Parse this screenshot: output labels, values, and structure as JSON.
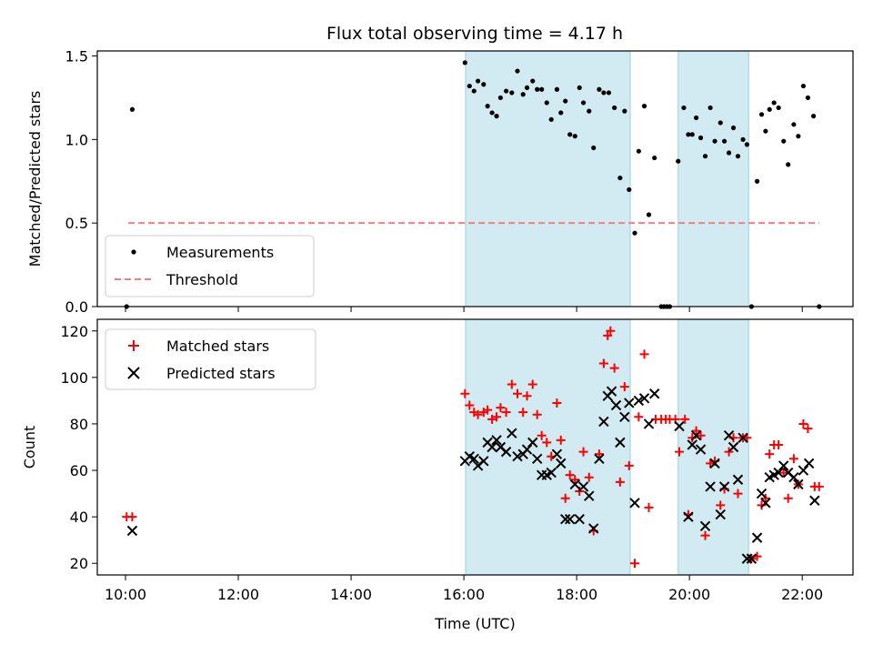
{
  "title": "Flux total observing time = 4.17 h",
  "chart_data": [
    {
      "type": "scatter",
      "ylabel": "Matched/Predicted stars",
      "xlim": [
        9.5,
        22.9
      ],
      "ylim": [
        0,
        1.53
      ],
      "yticks": [
        0,
        0.5,
        1.0,
        1.5
      ],
      "ytick_labels": [
        "0.0",
        "0.5",
        "1.0",
        "1.5"
      ],
      "legend_position": "lower-left",
      "shaded_spans": [
        [
          16.03,
          18.95
        ],
        [
          19.8,
          21.05
        ]
      ],
      "shade_color": "#add8e6",
      "series": [
        {
          "name": "Measurements",
          "color": "#000000",
          "marker": "dot",
          "points": [
            [
              10.02,
              0.0
            ],
            [
              10.12,
              1.18
            ],
            [
              16.02,
              1.46
            ],
            [
              16.1,
              1.32
            ],
            [
              16.18,
              1.29
            ],
            [
              16.25,
              1.35
            ],
            [
              16.35,
              1.33
            ],
            [
              16.42,
              1.2
            ],
            [
              16.5,
              1.16
            ],
            [
              16.58,
              1.14
            ],
            [
              16.65,
              1.25
            ],
            [
              16.75,
              1.29
            ],
            [
              16.85,
              1.28
            ],
            [
              16.95,
              1.41
            ],
            [
              17.05,
              1.27
            ],
            [
              17.12,
              1.31
            ],
            [
              17.22,
              1.35
            ],
            [
              17.3,
              1.3
            ],
            [
              17.38,
              1.3
            ],
            [
              17.47,
              1.22
            ],
            [
              17.55,
              1.12
            ],
            [
              17.65,
              1.3
            ],
            [
              17.72,
              1.16
            ],
            [
              17.8,
              1.23
            ],
            [
              17.88,
              1.03
            ],
            [
              17.97,
              1.02
            ],
            [
              18.05,
              1.31
            ],
            [
              18.12,
              1.22
            ],
            [
              18.22,
              1.17
            ],
            [
              18.3,
              0.95
            ],
            [
              18.4,
              1.3
            ],
            [
              18.48,
              1.28
            ],
            [
              18.57,
              1.28
            ],
            [
              18.67,
              1.19
            ],
            [
              18.77,
              0.77
            ],
            [
              18.85,
              1.17
            ],
            [
              18.93,
              0.7
            ],
            [
              19.03,
              0.44
            ],
            [
              19.1,
              0.93
            ],
            [
              19.2,
              1.2
            ],
            [
              19.28,
              0.55
            ],
            [
              19.38,
              0.89
            ],
            [
              19.5,
              0.0
            ],
            [
              19.55,
              0.0
            ],
            [
              19.6,
              0.0
            ],
            [
              19.65,
              0.0
            ],
            [
              19.8,
              0.87
            ],
            [
              19.9,
              1.19
            ],
            [
              19.98,
              1.03
            ],
            [
              20.05,
              1.03
            ],
            [
              20.12,
              1.13
            ],
            [
              20.2,
              1.01
            ],
            [
              20.28,
              0.9
            ],
            [
              20.37,
              1.19
            ],
            [
              20.45,
              0.99
            ],
            [
              20.55,
              1.1
            ],
            [
              20.62,
              0.99
            ],
            [
              20.7,
              0.92
            ],
            [
              20.78,
              1.07
            ],
            [
              20.86,
              0.9
            ],
            [
              20.95,
              1.0
            ],
            [
              21.02,
              0.97
            ],
            [
              21.1,
              0.0
            ],
            [
              21.2,
              0.75
            ],
            [
              21.28,
              1.15
            ],
            [
              21.35,
              1.05
            ],
            [
              21.42,
              1.18
            ],
            [
              21.5,
              1.22
            ],
            [
              21.58,
              1.19
            ],
            [
              21.67,
              0.99
            ],
            [
              21.75,
              0.85
            ],
            [
              21.85,
              1.09
            ],
            [
              21.93,
              1.02
            ],
            [
              22.02,
              1.32
            ],
            [
              22.1,
              1.25
            ],
            [
              22.2,
              1.14
            ],
            [
              22.3,
              0.0
            ]
          ]
        },
        {
          "name": "Threshold",
          "color": "#f08080",
          "style": "dashed",
          "x": [
            10.05,
            22.3
          ],
          "y": [
            0.5,
            0.5
          ]
        }
      ]
    },
    {
      "type": "scatter",
      "ylabel": "Count",
      "xlabel": "Time (UTC)",
      "xlim": [
        9.5,
        22.9
      ],
      "ylim": [
        15,
        125
      ],
      "yticks": [
        20,
        40,
        60,
        80,
        100,
        120
      ],
      "ytick_labels": [
        "20",
        "40",
        "60",
        "80",
        "100",
        "120"
      ],
      "xticks": [
        10,
        12,
        14,
        16,
        18,
        20,
        22
      ],
      "xtick_labels": [
        "10:00",
        "12:00",
        "14:00",
        "16:00",
        "18:00",
        "20:00",
        "22:00"
      ],
      "legend_position": "upper-left",
      "shaded_spans": [
        [
          16.03,
          18.95
        ],
        [
          19.8,
          21.05
        ]
      ],
      "shade_color": "#add8e6",
      "series": [
        {
          "name": "Matched stars",
          "color": "#ff0000",
          "marker": "plus",
          "points": [
            [
              10.02,
              40
            ],
            [
              10.12,
              40
            ],
            [
              16.02,
              93
            ],
            [
              16.1,
              88
            ],
            [
              16.18,
              85
            ],
            [
              16.25,
              84
            ],
            [
              16.35,
              85
            ],
            [
              16.42,
              86
            ],
            [
              16.5,
              82
            ],
            [
              16.58,
              83
            ],
            [
              16.65,
              87
            ],
            [
              16.75,
              85
            ],
            [
              16.85,
              97
            ],
            [
              16.95,
              93
            ],
            [
              17.05,
              85
            ],
            [
              17.12,
              92
            ],
            [
              17.22,
              97
            ],
            [
              17.3,
              84
            ],
            [
              17.38,
              75
            ],
            [
              17.47,
              72
            ],
            [
              17.55,
              66
            ],
            [
              17.65,
              89
            ],
            [
              17.72,
              73
            ],
            [
              17.8,
              48
            ],
            [
              17.88,
              58
            ],
            [
              17.97,
              56
            ],
            [
              18.05,
              51
            ],
            [
              18.12,
              68
            ],
            [
              18.22,
              57
            ],
            [
              18.3,
              34
            ],
            [
              18.4,
              67
            ],
            [
              18.48,
              106
            ],
            [
              18.55,
              118
            ],
            [
              18.6,
              120
            ],
            [
              18.67,
              104
            ],
            [
              18.77,
              55
            ],
            [
              18.85,
              96
            ],
            [
              18.93,
              62
            ],
            [
              19.03,
              20
            ],
            [
              19.1,
              83
            ],
            [
              19.2,
              110
            ],
            [
              19.28,
              44
            ],
            [
              19.4,
              82
            ],
            [
              19.5,
              82
            ],
            [
              19.58,
              82
            ],
            [
              19.65,
              82
            ],
            [
              19.75,
              82
            ],
            [
              19.82,
              68
            ],
            [
              19.92,
              82
            ],
            [
              19.98,
              41
            ],
            [
              20.05,
              74
            ],
            [
              20.12,
              77
            ],
            [
              20.2,
              75
            ],
            [
              20.28,
              32
            ],
            [
              20.37,
              63
            ],
            [
              20.45,
              64
            ],
            [
              20.55,
              45
            ],
            [
              20.62,
              52
            ],
            [
              20.7,
              68
            ],
            [
              20.78,
              74
            ],
            [
              20.86,
              50
            ],
            [
              20.95,
              74
            ],
            [
              21.02,
              74
            ],
            [
              21.1,
              22
            ],
            [
              21.2,
              23
            ],
            [
              21.28,
              45
            ],
            [
              21.35,
              48
            ],
            [
              21.42,
              67
            ],
            [
              21.5,
              71
            ],
            [
              21.58,
              71
            ],
            [
              21.67,
              59
            ],
            [
              21.75,
              48
            ],
            [
              21.85,
              65
            ],
            [
              21.93,
              54
            ],
            [
              22.02,
              80
            ],
            [
              22.1,
              78
            ],
            [
              22.22,
              53
            ],
            [
              22.3,
              53
            ]
          ]
        },
        {
          "name": "Predicted stars",
          "color": "#000000",
          "marker": "x",
          "points": [
            [
              10.12,
              34
            ],
            [
              16.02,
              64
            ],
            [
              16.1,
              66
            ],
            [
              16.18,
              65
            ],
            [
              16.25,
              62
            ],
            [
              16.35,
              64
            ],
            [
              16.42,
              72
            ],
            [
              16.5,
              70
            ],
            [
              16.58,
              73
            ],
            [
              16.65,
              70
            ],
            [
              16.75,
              68
            ],
            [
              16.85,
              76
            ],
            [
              16.95,
              66
            ],
            [
              17.05,
              67
            ],
            [
              17.12,
              69
            ],
            [
              17.22,
              72
            ],
            [
              17.3,
              65
            ],
            [
              17.38,
              58
            ],
            [
              17.47,
              58
            ],
            [
              17.55,
              59
            ],
            [
              17.65,
              67
            ],
            [
              17.72,
              63
            ],
            [
              17.8,
              39
            ],
            [
              17.88,
              39
            ],
            [
              17.97,
              54
            ],
            [
              18.05,
              39
            ],
            [
              18.12,
              53
            ],
            [
              18.22,
              49
            ],
            [
              18.3,
              35
            ],
            [
              18.4,
              65
            ],
            [
              18.48,
              81
            ],
            [
              18.55,
              92
            ],
            [
              18.62,
              94
            ],
            [
              18.7,
              88
            ],
            [
              18.77,
              72
            ],
            [
              18.85,
              83
            ],
            [
              18.93,
              89
            ],
            [
              19.03,
              46
            ],
            [
              19.1,
              90
            ],
            [
              19.2,
              91
            ],
            [
              19.28,
              80
            ],
            [
              19.38,
              93
            ],
            [
              19.82,
              79
            ],
            [
              19.98,
              40
            ],
            [
              20.05,
              71
            ],
            [
              20.12,
              75
            ],
            [
              20.2,
              69
            ],
            [
              20.28,
              36
            ],
            [
              20.37,
              53
            ],
            [
              20.45,
              63
            ],
            [
              20.55,
              41
            ],
            [
              20.62,
              53
            ],
            [
              20.7,
              75
            ],
            [
              20.78,
              70
            ],
            [
              20.86,
              56
            ],
            [
              20.95,
              74
            ],
            [
              21.02,
              22
            ],
            [
              21.1,
              22
            ],
            [
              21.2,
              31
            ],
            [
              21.28,
              50
            ],
            [
              21.35,
              46
            ],
            [
              21.42,
              57
            ],
            [
              21.5,
              58
            ],
            [
              21.58,
              59
            ],
            [
              21.67,
              62
            ],
            [
              21.75,
              59
            ],
            [
              21.85,
              57
            ],
            [
              21.93,
              54
            ],
            [
              22.02,
              60
            ],
            [
              22.12,
              63
            ],
            [
              22.22,
              47
            ]
          ]
        }
      ]
    }
  ]
}
